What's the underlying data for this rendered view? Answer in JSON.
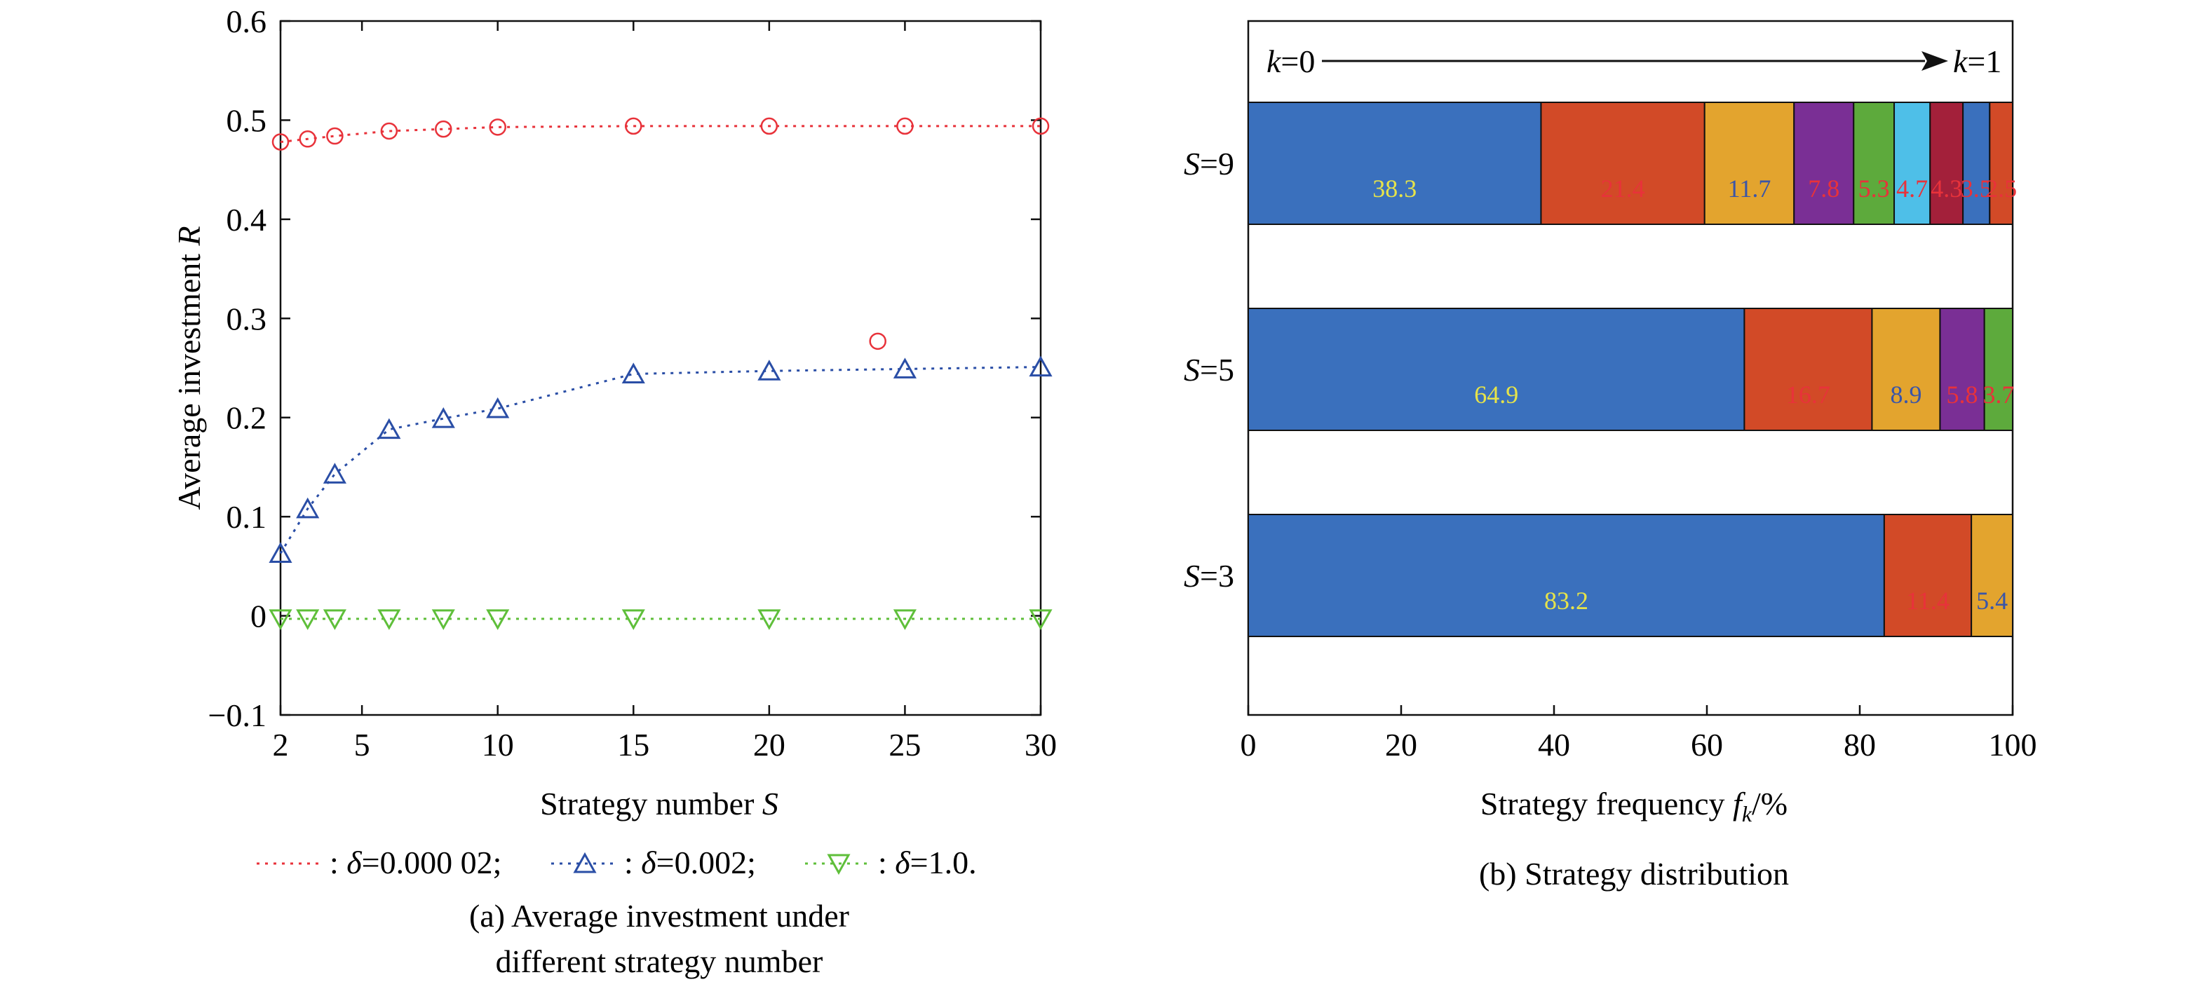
{
  "chart_data": [
    {
      "type": "line",
      "caption": "(a) Average investment under different strategy number",
      "xlabel": "Strategy number S",
      "ylabel": "Average investment R",
      "xlim": [
        2,
        30
      ],
      "ylim": [
        -0.1,
        0.6
      ],
      "xticks": [
        2,
        5,
        10,
        15,
        20,
        25,
        30
      ],
      "yticks": [
        -0.1,
        0,
        0.1,
        0.2,
        0.3,
        0.4,
        0.5,
        0.6
      ],
      "ytick_labels": [
        "−0.1",
        "0",
        "0.1",
        "0.2",
        "0.3",
        "0.4",
        "0.5",
        "0.6"
      ],
      "grid": false,
      "legend_position": "bottom",
      "series": [
        {
          "name": ": δ=0.000 02;",
          "color": "#e8323a",
          "marker": "circle",
          "x": [
            2,
            3,
            4,
            6,
            8,
            10,
            15,
            20,
            25,
            30
          ],
          "y": [
            0.478,
            0.481,
            0.484,
            0.489,
            0.491,
            0.493,
            0.494,
            0.494,
            0.494,
            0.494
          ]
        },
        {
          "name": ": δ=0.002;",
          "color": "#2a4ea6",
          "marker": "triangle-up",
          "x": [
            2,
            3,
            4,
            6,
            8,
            10,
            15,
            20,
            25,
            30
          ],
          "y": [
            0.063,
            0.108,
            0.143,
            0.188,
            0.199,
            0.209,
            0.244,
            0.247,
            0.249,
            0.251
          ]
        },
        {
          "name": ": δ=1.0.",
          "color": "#5fbf3a",
          "marker": "triangle-down",
          "x": [
            2,
            3,
            4,
            6,
            8,
            10,
            15,
            20,
            25,
            30
          ],
          "y": [
            -0.003,
            -0.003,
            -0.003,
            -0.003,
            -0.003,
            -0.003,
            -0.003,
            -0.003,
            -0.003,
            -0.003
          ]
        }
      ],
      "annotations": [
        {
          "type": "marker-circle",
          "x": 24,
          "y": 0.277,
          "color": "#e8323a"
        }
      ]
    },
    {
      "type": "bar",
      "orientation": "horizontal",
      "stacked": true,
      "caption": "(b) Strategy distribution",
      "xlabel": "Strategy frequency f_k/%",
      "xlim": [
        0,
        100
      ],
      "xticks": [
        0,
        20,
        40,
        60,
        80,
        100
      ],
      "arrow_left_label": "k=0",
      "arrow_right_label": "k=1",
      "segment_colors": [
        "#3a70bd",
        "#d24a27",
        "#e3a42e",
        "#7a2f95",
        "#5daa3c",
        "#4ebfe8",
        "#a3203a",
        "#3a70bd",
        "#d24a27"
      ],
      "rows": [
        {
          "label": "S=9",
          "values": [
            38.3,
            21.4,
            11.7,
            7.8,
            5.3,
            4.7,
            4.3,
            3.5,
            2.5
          ],
          "labels": [
            "38.3",
            "21.4",
            "11.7",
            "7.8",
            "5.3",
            "4.7",
            "4.3",
            "3.5",
            "2.5"
          ],
          "label_colors": [
            "#e6e34a",
            "#e8323a",
            "#3a55a8",
            "#e8323a",
            "#e8323a",
            "#e8323a",
            "#e8323a",
            "#e8323a",
            "#e8323a"
          ]
        },
        {
          "label": "S=5",
          "values": [
            64.9,
            16.7,
            8.9,
            5.8,
            3.7
          ],
          "labels": [
            "64.9",
            "16.7",
            "8.9",
            "5.8",
            "3.7"
          ],
          "label_colors": [
            "#e6e34a",
            "#e8323a",
            "#3a55a8",
            "#e8323a",
            "#e8323a"
          ]
        },
        {
          "label": "S=3",
          "values": [
            83.2,
            11.4,
            5.4
          ],
          "labels": [
            "83.2",
            "11.4",
            "5.4"
          ],
          "label_colors": [
            "#e6e34a",
            "#e8323a",
            "#3a55a8"
          ]
        }
      ]
    }
  ]
}
